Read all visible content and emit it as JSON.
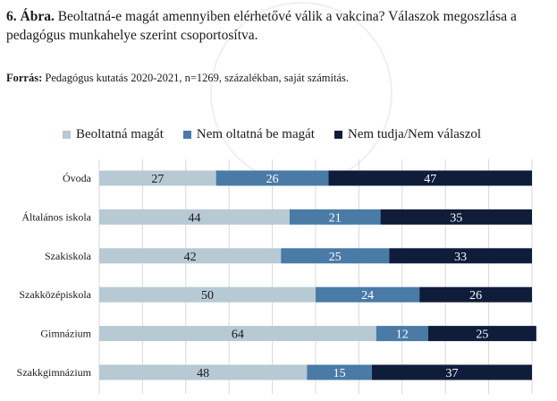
{
  "caption": {
    "number": "6. Ábra.",
    "text": "Beoltatná-e magát amennyiben elérhetővé válik a vakcina? Válaszok megoszlása a pedagógus munkahelye szerint csoportosítva."
  },
  "source": {
    "label": "Forrás:",
    "text": "Pedagógus kutatás 2020-2021, n=1269, százalékban, saját számítás."
  },
  "colors": {
    "series1": "#b7c9d3",
    "series2": "#4a7aa6",
    "series3": "#0f1c3a",
    "grid": "#d9d9d9"
  },
  "chart_data": {
    "type": "bar",
    "orientation": "horizontal",
    "stacked": true,
    "percent": true,
    "categories": [
      "Óvoda",
      "Általános iskola",
      "Szakiskola",
      "Szakközépiskola",
      "Gimnázium",
      "Szakkgimnázium"
    ],
    "series": [
      {
        "name": "Beoltatná magát",
        "values": [
          27,
          44,
          42,
          50,
          64,
          48
        ]
      },
      {
        "name": "Nem oltatná be magát",
        "values": [
          26,
          21,
          25,
          24,
          12,
          15
        ]
      },
      {
        "name": "Nem tudja/Nem válaszol",
        "values": [
          47,
          35,
          33,
          26,
          25,
          37
        ]
      }
    ],
    "xlim": [
      0,
      100
    ],
    "legend": "top",
    "grid": true
  }
}
